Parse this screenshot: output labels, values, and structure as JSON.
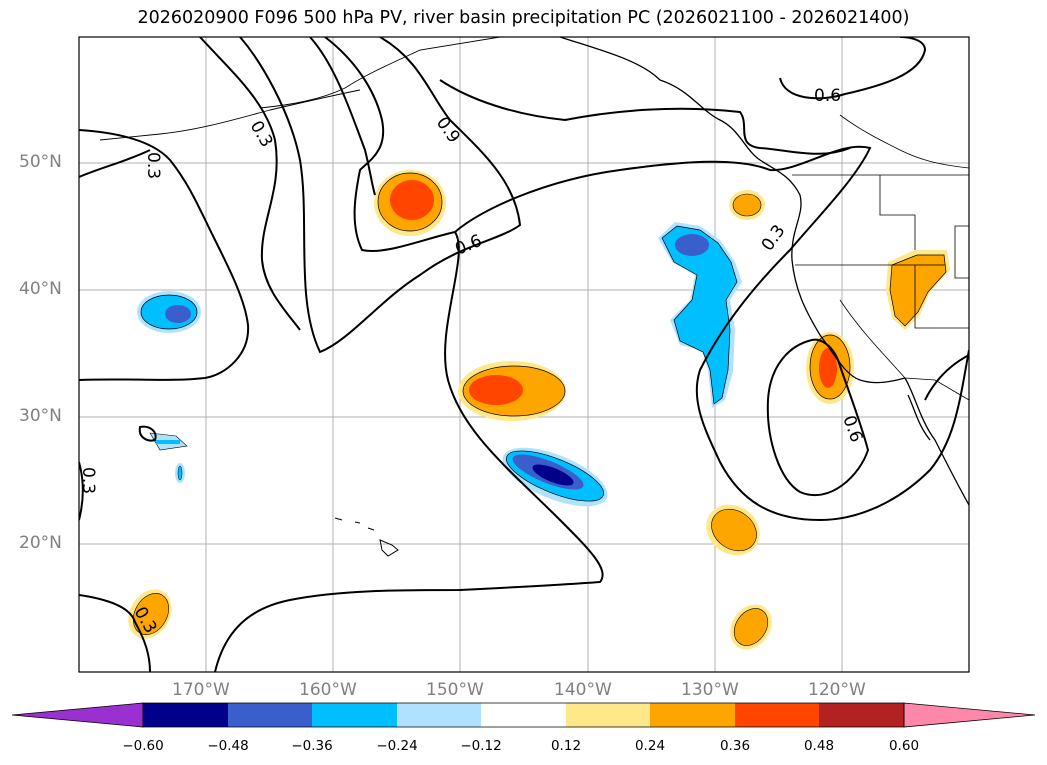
{
  "title": "2026020900 F096 500 hPa PV, river basin precipitation PC (2026021100 - 2026021400)",
  "axes": {
    "lat_labels": [
      "50°N",
      "40°N",
      "30°N",
      "20°N"
    ],
    "lon_labels": [
      "170°W",
      "160°W",
      "150°W",
      "140°W",
      "130°W",
      "120°W"
    ],
    "extent": {
      "lon": [
        -180,
        -110
      ],
      "lat": [
        10,
        60
      ]
    },
    "grid": true
  },
  "contour_labels": [
    "0.3",
    "0.3",
    "0.9",
    "0.6",
    "0.6",
    "0.3",
    "0.6",
    "0.3",
    "0.3"
  ],
  "colorbar": {
    "tick_labels": [
      "−0.60",
      "−0.48",
      "−0.36",
      "−0.24",
      "−0.12",
      "0.12",
      "0.24",
      "0.36",
      "0.48",
      "0.60"
    ],
    "colors": [
      "#9b30d0",
      "#00008b",
      "#3a5fcd",
      "#00bfff",
      "#b0e2ff",
      "#ffffff",
      "#ffe88a",
      "#ffa500",
      "#ff4500",
      "#b22222",
      "#ff88aa"
    ],
    "extend": "both"
  },
  "legend": "colorbar-bottom",
  "chart_data": {
    "type": "map-contour",
    "contour_levels": [
      0.3,
      0.6,
      0.9
    ],
    "anomaly_centers": [
      {
        "lon": -155,
        "lat": 48,
        "value": 0.42
      },
      {
        "lon": -146,
        "lat": 32,
        "value": 0.4
      },
      {
        "lon": -142,
        "lat": 25,
        "value": -0.55
      },
      {
        "lon": -131,
        "lat": 40,
        "value": -0.4
      },
      {
        "lon": -173,
        "lat": 38,
        "value": -0.4
      },
      {
        "lon": -121,
        "lat": 34,
        "value": 0.4
      },
      {
        "lon": -115,
        "lat": 40,
        "value": 0.3
      },
      {
        "lon": -126,
        "lat": 47,
        "value": 0.3
      },
      {
        "lon": -129,
        "lat": 20,
        "value": 0.28
      },
      {
        "lon": -127,
        "lat": 13,
        "value": 0.28
      },
      {
        "lon": -174,
        "lat": 14,
        "value": 0.28
      },
      {
        "lon": -172,
        "lat": 28,
        "value": -0.3
      },
      {
        "lon": -172,
        "lat": 25,
        "value": -0.3
      }
    ]
  }
}
